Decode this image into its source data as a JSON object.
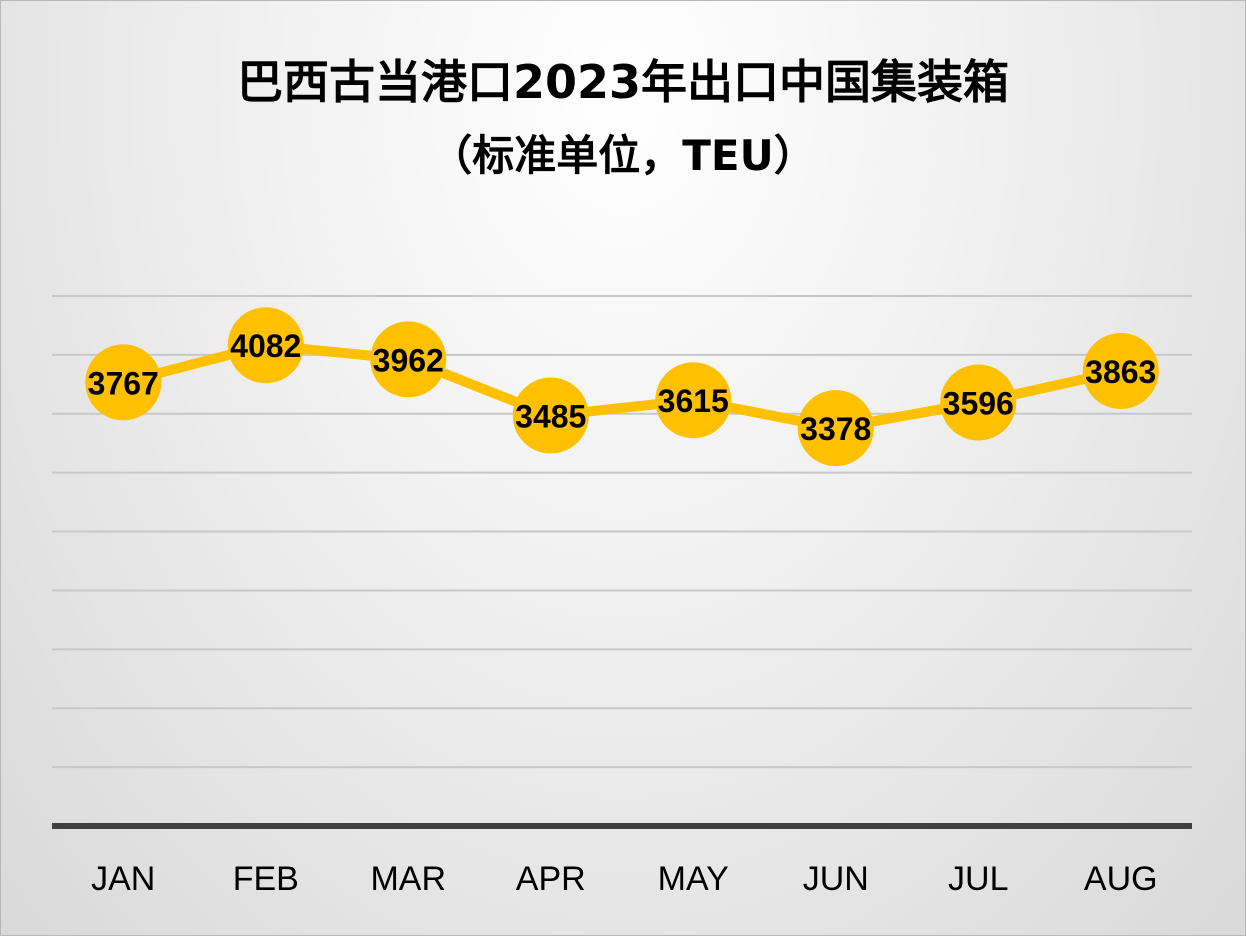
{
  "chart_data": {
    "type": "line",
    "title": "巴西古当港口2023年出口中国集装箱",
    "subtitle": "（标准单位，TEU）",
    "categories": [
      "JAN",
      "FEB",
      "MAR",
      "APR",
      "MAY",
      "JUN",
      "JUL",
      "AUG"
    ],
    "series": [
      {
        "values": [
          3767,
          4082,
          3962,
          3485,
          3615,
          3378,
          3596,
          3863
        ]
      }
    ],
    "ylim": [
      0,
      4500
    ],
    "ytick_step": 500,
    "grid": true,
    "legend": "none",
    "data_labels": true,
    "colors": {
      "line": "#FFC000",
      "marker": "#FFC000",
      "axis": "#404040",
      "grid": "#c8c8c8"
    }
  }
}
